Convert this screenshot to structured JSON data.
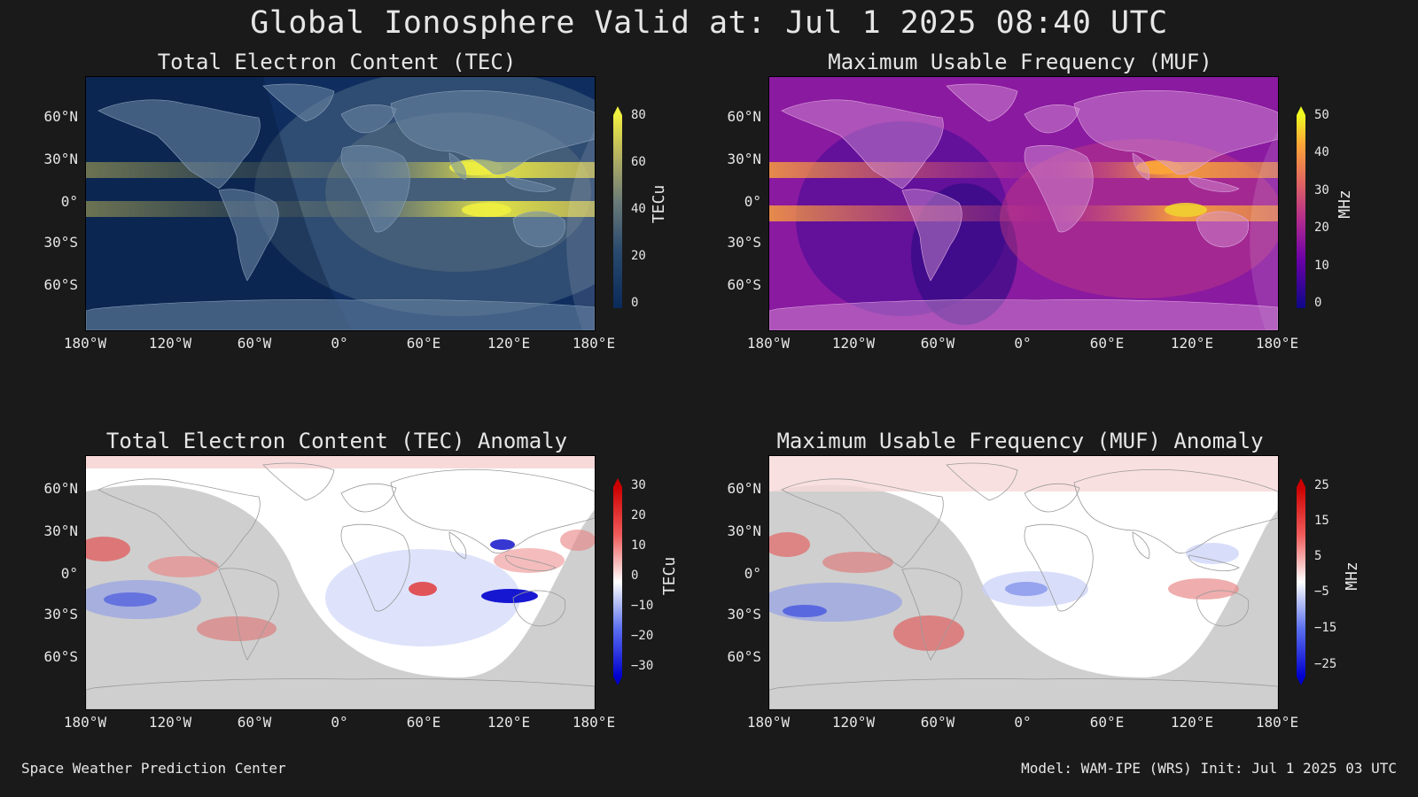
{
  "title": "Global Ionosphere Valid at: Jul 1 2025 08:40 UTC",
  "footer": {
    "left": "Space Weather Prediction Center",
    "right": "Model: WAM-IPE (WRS) Init: Jul 1 2025 03 UTC"
  },
  "axes": {
    "lat_ticks": [
      "60°N",
      "30°N",
      "0°",
      "30°S",
      "60°S"
    ],
    "lon_ticks": [
      "180°W",
      "120°W",
      "60°W",
      "0°",
      "60°E",
      "120°E",
      "180°E"
    ]
  },
  "panels": [
    {
      "title": "Total Electron Content (TEC)",
      "unit": "TECu",
      "colorbar_ticks": [
        "80",
        "60",
        "40",
        "20",
        "0"
      ],
      "colors": [
        "#0a2a5a",
        "#1c3f6e",
        "#3d5a7a",
        "#7a8a78",
        "#c8c060",
        "#f0f040"
      ],
      "extend": "max"
    },
    {
      "title": "Maximum Usable Frequency (MUF)",
      "unit": "MHz",
      "colorbar_ticks": [
        "50",
        "40",
        "30",
        "20",
        "10",
        "0"
      ],
      "colors": [
        "#0d0887",
        "#6a00a8",
        "#b12a90",
        "#e16462",
        "#fca636",
        "#f0f921"
      ],
      "extend": "max"
    },
    {
      "title": "Total Electron Content (TEC) Anomaly",
      "unit": "TECu",
      "colorbar_ticks": [
        "30",
        "20",
        "10",
        "0",
        "−10",
        "−20",
        "−30"
      ],
      "colors": [
        "#0000cc",
        "#5a6ef0",
        "#c8d0f8",
        "#ffffff",
        "#f8c8c8",
        "#f05a5a",
        "#cc0000"
      ],
      "extend": "both"
    },
    {
      "title": "Maximum Usable Frequency (MUF) Anomaly",
      "unit": "MHz",
      "colorbar_ticks": [
        "25",
        "15",
        "5",
        "−5",
        "−15",
        "−25"
      ],
      "colors": [
        "#0000cc",
        "#5a6ef0",
        "#c8d0f8",
        "#ffffff",
        "#f8c8c8",
        "#f05a5a",
        "#cc0000"
      ],
      "extend": "both"
    }
  ]
}
